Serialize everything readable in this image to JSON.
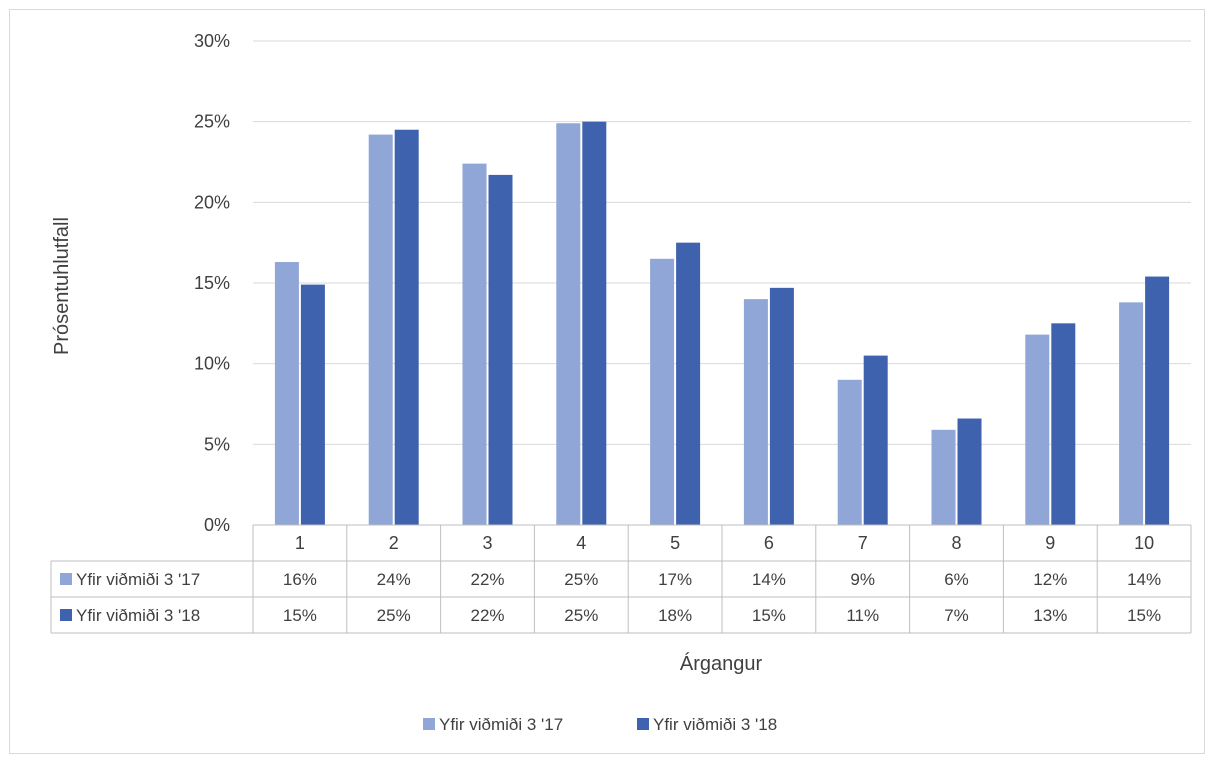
{
  "chart_data": {
    "type": "bar",
    "xlabel": "Árgangur",
    "ylabel": "Prósentuhlutfall",
    "ylim": [
      0,
      0.3
    ],
    "yticks": [
      "0%",
      "5%",
      "10%",
      "15%",
      "20%",
      "25%",
      "30%"
    ],
    "categories": [
      "1",
      "2",
      "3",
      "4",
      "5",
      "6",
      "7",
      "8",
      "9",
      "10"
    ],
    "grid": true,
    "legend_position": "bottom",
    "data_table": true,
    "series": [
      {
        "name": "Yfir viðmiði 3 '17",
        "color": "#8FA6D6",
        "values": [
          0.163,
          0.242,
          0.224,
          0.249,
          0.165,
          0.14,
          0.09,
          0.059,
          0.118,
          0.138
        ],
        "table_labels": [
          "16%",
          "24%",
          "22%",
          "25%",
          "17%",
          "14%",
          "9%",
          "6%",
          "12%",
          "14%"
        ]
      },
      {
        "name": "Yfir viðmiði 3 '18",
        "color": "#3F62AE",
        "values": [
          0.149,
          0.245,
          0.217,
          0.25,
          0.175,
          0.147,
          0.105,
          0.066,
          0.125,
          0.154
        ],
        "table_labels": [
          "15%",
          "25%",
          "22%",
          "25%",
          "18%",
          "15%",
          "11%",
          "7%",
          "13%",
          "15%"
        ]
      }
    ]
  }
}
